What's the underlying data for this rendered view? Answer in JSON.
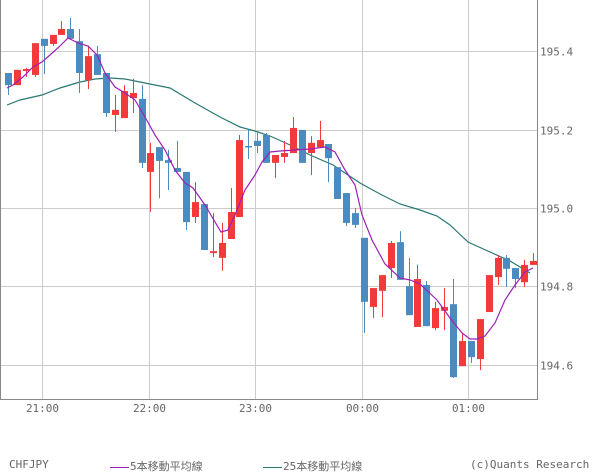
{
  "chart_data": {
    "type": "candlestick",
    "symbol": "CHFJPY",
    "interval_minutes": 5,
    "title": "",
    "xlabel": "",
    "ylabel": "",
    "ylim": [
      194.514,
      195.525
    ],
    "y_ticks": [
      195.4,
      195.2,
      195.0,
      194.8,
      194.6
    ],
    "y_tick_labels": [
      "195.4",
      "195.2",
      "195.0",
      "194.8",
      "194.6"
    ],
    "x_ticks": [
      "21:00",
      "22:00",
      "23:00",
      "00:00",
      "01:00"
    ],
    "x_tick_candle_index": [
      4,
      16,
      28,
      40,
      52
    ],
    "grid": true,
    "colors": {
      "up": "#f23a3a",
      "down": "#4b8bbf",
      "ma5": "#9a22b4",
      "ma25": "#2a7872",
      "grid": "#cccccc",
      "axis": "#888888",
      "text": "#666666"
    },
    "legend": [
      {
        "label": "5本移動平均線",
        "color": "#9a22b4"
      },
      {
        "label": "25本移動平均線",
        "color": "#2a7872"
      }
    ],
    "candles": [
      {
        "o": 195.344,
        "h": 195.344,
        "l": 195.288,
        "c": 195.313
      },
      {
        "o": 195.313,
        "h": 195.352,
        "l": 195.313,
        "c": 195.352
      },
      {
        "o": 195.349,
        "h": 195.357,
        "l": 195.334,
        "c": 195.354
      },
      {
        "o": 195.339,
        "h": 195.42,
        "l": 195.334,
        "c": 195.42
      },
      {
        "o": 195.431,
        "h": 195.431,
        "l": 195.341,
        "c": 195.413
      },
      {
        "o": 195.418,
        "h": 195.441,
        "l": 195.413,
        "c": 195.441
      },
      {
        "o": 195.441,
        "h": 195.476,
        "l": 195.441,
        "c": 195.456
      },
      {
        "o": 195.456,
        "h": 195.484,
        "l": 195.431,
        "c": 195.431
      },
      {
        "o": 195.425,
        "h": 195.456,
        "l": 195.293,
        "c": 195.344
      },
      {
        "o": 195.326,
        "h": 195.413,
        "l": 195.303,
        "c": 195.387
      },
      {
        "o": 195.392,
        "h": 195.413,
        "l": 195.339,
        "c": 195.339
      },
      {
        "o": 195.344,
        "h": 195.344,
        "l": 195.232,
        "c": 195.242
      },
      {
        "o": 195.237,
        "h": 195.288,
        "l": 195.194,
        "c": 195.25
      },
      {
        "o": 195.229,
        "h": 195.313,
        "l": 195.229,
        "c": 195.298
      },
      {
        "o": 195.28,
        "h": 195.329,
        "l": 195.242,
        "c": 195.293
      },
      {
        "o": 195.278,
        "h": 195.313,
        "l": 195.102,
        "c": 195.115
      },
      {
        "o": 195.092,
        "h": 195.166,
        "l": 194.99,
        "c": 195.14
      },
      {
        "o": 195.155,
        "h": 195.155,
        "l": 195.025,
        "c": 195.12
      },
      {
        "o": 195.122,
        "h": 195.148,
        "l": 195.046,
        "c": 195.115
      },
      {
        "o": 195.102,
        "h": 195.171,
        "l": 195.092,
        "c": 195.092
      },
      {
        "o": 195.092,
        "h": 195.092,
        "l": 194.944,
        "c": 194.964
      },
      {
        "o": 194.977,
        "h": 195.066,
        "l": 194.962,
        "c": 195.015
      },
      {
        "o": 195.01,
        "h": 195.01,
        "l": 194.893,
        "c": 194.893
      },
      {
        "o": 194.885,
        "h": 194.987,
        "l": 194.875,
        "c": 194.89
      },
      {
        "o": 194.873,
        "h": 194.962,
        "l": 194.84,
        "c": 194.911
      },
      {
        "o": 194.921,
        "h": 195.051,
        "l": 194.921,
        "c": 194.99
      },
      {
        "o": 194.977,
        "h": 195.186,
        "l": 194.977,
        "c": 195.173
      },
      {
        "o": 195.158,
        "h": 195.199,
        "l": 195.125,
        "c": 195.155
      },
      {
        "o": 195.171,
        "h": 195.194,
        "l": 195.14,
        "c": 195.158
      },
      {
        "o": 195.186,
        "h": 195.191,
        "l": 195.115,
        "c": 195.115
      },
      {
        "o": 195.115,
        "h": 195.135,
        "l": 195.076,
        "c": 195.135
      },
      {
        "o": 195.13,
        "h": 195.171,
        "l": 195.115,
        "c": 195.14
      },
      {
        "o": 195.14,
        "h": 195.232,
        "l": 195.14,
        "c": 195.204
      },
      {
        "o": 195.199,
        "h": 195.199,
        "l": 195.115,
        "c": 195.115
      },
      {
        "o": 195.14,
        "h": 195.183,
        "l": 195.084,
        "c": 195.166
      },
      {
        "o": 195.155,
        "h": 195.222,
        "l": 195.155,
        "c": 195.173
      },
      {
        "o": 195.163,
        "h": 195.163,
        "l": 195.066,
        "c": 195.127
      },
      {
        "o": 195.104,
        "h": 195.104,
        "l": 195.023,
        "c": 195.023
      },
      {
        "o": 195.038,
        "h": 195.038,
        "l": 194.954,
        "c": 194.962
      },
      {
        "o": 194.987,
        "h": 195.0,
        "l": 194.949,
        "c": 194.957
      },
      {
        "o": 194.924,
        "h": 194.924,
        "l": 194.682,
        "c": 194.761
      },
      {
        "o": 194.748,
        "h": 194.796,
        "l": 194.72,
        "c": 194.796
      },
      {
        "o": 194.789,
        "h": 194.829,
        "l": 194.722,
        "c": 194.829
      },
      {
        "o": 194.847,
        "h": 194.916,
        "l": 194.822,
        "c": 194.911
      },
      {
        "o": 194.913,
        "h": 194.941,
        "l": 194.817,
        "c": 194.817
      },
      {
        "o": 194.801,
        "h": 194.873,
        "l": 194.727,
        "c": 194.727
      },
      {
        "o": 194.697,
        "h": 194.855,
        "l": 194.697,
        "c": 194.819
      },
      {
        "o": 194.804,
        "h": 194.814,
        "l": 194.699,
        "c": 194.699
      },
      {
        "o": 194.694,
        "h": 194.761,
        "l": 194.689,
        "c": 194.745
      },
      {
        "o": 194.738,
        "h": 194.796,
        "l": 194.689,
        "c": 194.748
      },
      {
        "o": 194.755,
        "h": 194.819,
        "l": 194.567,
        "c": 194.569
      },
      {
        "o": 194.597,
        "h": 194.682,
        "l": 194.597,
        "c": 194.661
      },
      {
        "o": 194.661,
        "h": 194.661,
        "l": 194.605,
        "c": 194.62
      },
      {
        "o": 194.615,
        "h": 194.717,
        "l": 194.587,
        "c": 194.717
      },
      {
        "o": 194.735,
        "h": 194.829,
        "l": 194.735,
        "c": 194.829
      },
      {
        "o": 194.824,
        "h": 194.88,
        "l": 194.804,
        "c": 194.873
      },
      {
        "o": 194.873,
        "h": 194.88,
        "l": 194.799,
        "c": 194.845
      },
      {
        "o": 194.847,
        "h": 194.847,
        "l": 194.796,
        "c": 194.819
      },
      {
        "o": 194.811,
        "h": 194.868,
        "l": 194.799,
        "c": 194.855
      },
      {
        "o": 194.855,
        "h": 194.885,
        "l": 194.855,
        "c": 194.865
      }
    ],
    "series": [
      {
        "name": "5本移動平均線",
        "points_xy": [
          [
            7,
            88
          ],
          [
            13,
            85
          ],
          [
            23,
            77
          ],
          [
            33,
            67
          ],
          [
            42,
            62
          ],
          [
            50,
            55
          ],
          [
            60,
            46
          ],
          [
            68,
            38
          ],
          [
            78,
            43
          ],
          [
            88,
            46
          ],
          [
            97,
            55
          ],
          [
            105,
            73
          ],
          [
            115,
            87
          ],
          [
            125,
            93
          ],
          [
            135,
            100
          ],
          [
            145,
            117
          ],
          [
            155,
            135
          ],
          [
            165,
            150
          ],
          [
            175,
            170
          ],
          [
            185,
            183
          ],
          [
            193,
            188
          ],
          [
            205,
            205
          ],
          [
            215,
            222
          ],
          [
            221,
            232
          ],
          [
            228,
            230
          ],
          [
            235,
            215
          ],
          [
            245,
            190
          ],
          [
            255,
            175
          ],
          [
            262,
            162
          ],
          [
            270,
            152
          ],
          [
            280,
            151
          ],
          [
            295,
            150
          ],
          [
            310,
            149
          ],
          [
            325,
            147
          ],
          [
            335,
            152
          ],
          [
            345,
            170
          ],
          [
            355,
            185
          ],
          [
            362,
            215
          ],
          [
            372,
            240
          ],
          [
            385,
            264
          ],
          [
            400,
            278
          ],
          [
            410,
            280
          ],
          [
            420,
            284
          ],
          [
            437,
            300
          ],
          [
            450,
            318
          ],
          [
            462,
            333
          ],
          [
            470,
            339
          ],
          [
            477,
            339
          ],
          [
            485,
            336
          ],
          [
            495,
            323
          ],
          [
            505,
            300
          ],
          [
            515,
            285
          ],
          [
            525,
            272
          ],
          [
            533,
            268
          ]
        ]
      },
      {
        "name": "25本移動平均線",
        "points_xy": [
          [
            7,
            105
          ],
          [
            20,
            100
          ],
          [
            42,
            95
          ],
          [
            60,
            88
          ],
          [
            80,
            82
          ],
          [
            95,
            79
          ],
          [
            110,
            78
          ],
          [
            125,
            79
          ],
          [
            135,
            81
          ],
          [
            150,
            84
          ],
          [
            170,
            88
          ],
          [
            195,
            103
          ],
          [
            220,
            117
          ],
          [
            240,
            127
          ],
          [
            255,
            131
          ],
          [
            270,
            136
          ],
          [
            290,
            145
          ],
          [
            310,
            155
          ],
          [
            333,
            165
          ],
          [
            345,
            173
          ],
          [
            360,
            183
          ],
          [
            380,
            194
          ],
          [
            400,
            204
          ],
          [
            420,
            210
          ],
          [
            437,
            216
          ],
          [
            450,
            225
          ],
          [
            468,
            242
          ],
          [
            490,
            252
          ],
          [
            510,
            261
          ],
          [
            530,
            273
          ]
        ]
      }
    ]
  },
  "footer": {
    "symbol": "CHFJPY",
    "legend_5": "5本移動平均線",
    "legend_25": "25本移動平均線",
    "copyright": "(c)Quants Research"
  }
}
